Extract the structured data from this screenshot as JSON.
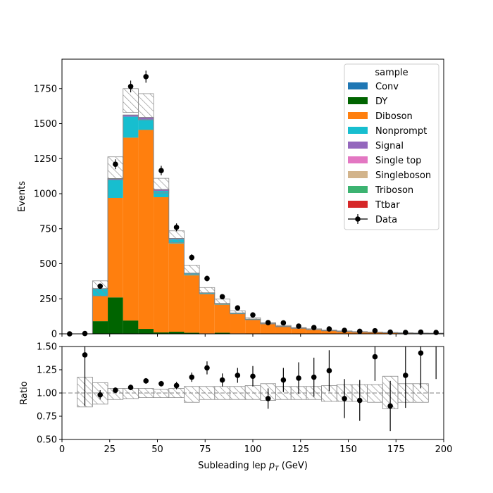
{
  "chart_data": {
    "type": "bar",
    "stacked": true,
    "xlabel": "Subleading lep p_T (GeV)",
    "xlim": [
      0,
      200
    ],
    "bin_edges": [
      0,
      8,
      16,
      24,
      32,
      40,
      48,
      56,
      64,
      72,
      80,
      88,
      96,
      104,
      112,
      120,
      128,
      136,
      144,
      152,
      160,
      168,
      176,
      184,
      192,
      200
    ],
    "main_panel": {
      "ylabel": "Events",
      "ylim": [
        0,
        1960
      ],
      "yticks": [
        0,
        250,
        500,
        750,
        1000,
        1250,
        1500,
        1750
      ],
      "legend": {
        "title": "sample",
        "placement": "top-right"
      },
      "series": [
        {
          "name": "Conv",
          "color": "#1f77b4",
          "values": [
            0,
            0,
            0,
            0,
            0,
            0,
            0,
            0,
            0,
            0,
            0,
            0,
            0,
            0,
            0,
            0,
            0,
            0,
            0,
            0,
            0,
            0,
            0,
            0,
            0
          ]
        },
        {
          "name": "DY",
          "color": "#006400",
          "values": [
            0,
            0,
            90,
            260,
            95,
            35,
            10,
            15,
            8,
            3,
            8,
            3,
            0,
            0,
            0,
            0,
            0,
            0,
            0,
            0,
            0,
            0,
            0,
            0,
            0
          ]
        },
        {
          "name": "Diboson",
          "color": "#ff7f0e",
          "values": [
            0,
            0,
            180,
            710,
            1305,
            1420,
            965,
            630,
            410,
            280,
            200,
            140,
            100,
            72,
            52,
            38,
            30,
            22,
            16,
            12,
            10,
            8,
            6,
            5,
            4
          ]
        },
        {
          "name": "Nonprompt",
          "color": "#17becf",
          "values": [
            0,
            0,
            50,
            130,
            150,
            75,
            45,
            30,
            12,
            8,
            8,
            5,
            4,
            3,
            2,
            2,
            1,
            1,
            1,
            1,
            1,
            0,
            0,
            0,
            0
          ]
        },
        {
          "name": "Signal",
          "color": "#9467bd",
          "values": [
            0,
            0,
            3,
            8,
            12,
            15,
            10,
            6,
            3,
            2,
            1,
            1,
            1,
            0,
            0,
            0,
            0,
            0,
            0,
            0,
            0,
            0,
            0,
            0,
            0
          ]
        },
        {
          "name": "Single top",
          "color": "#e377c2",
          "values": [
            0,
            0,
            0,
            0,
            0,
            0,
            0,
            0,
            0,
            0,
            0,
            0,
            0,
            0,
            0,
            0,
            0,
            0,
            0,
            0,
            0,
            0,
            0,
            0,
            0
          ]
        },
        {
          "name": "Singleboson",
          "color": "#d2b48c",
          "values": [
            0,
            0,
            0,
            0,
            0,
            0,
            0,
            0,
            0,
            0,
            0,
            0,
            0,
            0,
            0,
            0,
            0,
            0,
            0,
            0,
            0,
            0,
            0,
            0,
            0
          ]
        },
        {
          "name": "Triboson",
          "color": "#3cb371",
          "values": [
            0,
            0,
            0,
            0,
            0,
            0,
            0,
            0,
            0,
            0,
            0,
            0,
            0,
            0,
            0,
            0,
            0,
            0,
            0,
            0,
            0,
            0,
            0,
            0,
            0
          ]
        },
        {
          "name": "Ttbar",
          "color": "#d62728",
          "values": [
            0,
            0,
            0,
            0,
            0,
            0,
            0,
            0,
            0,
            0,
            0,
            0,
            0,
            0,
            0,
            0,
            0,
            0,
            0,
            0,
            0,
            0,
            0,
            0,
            0
          ]
        }
      ],
      "uncertainty": {
        "up": [
          0,
          0,
          378,
          1263,
          1750,
          1714,
          1110,
          735,
          490,
          330,
          248,
          165,
          115,
          80,
          60,
          45,
          36,
          27,
          21,
          16,
          13,
          10,
          8,
          6,
          5
        ],
        "down": [
          0,
          0,
          270,
          1100,
          1580,
          1527,
          1005,
          650,
          425,
          285,
          212,
          142,
          100,
          70,
          50,
          38,
          29,
          21,
          15,
          11,
          10,
          7,
          5,
          4,
          3
        ]
      },
      "data": {
        "name": "Data",
        "x": [
          4,
          12,
          20,
          28,
          36,
          44,
          52,
          60,
          68,
          76,
          84,
          92,
          100,
          108,
          116,
          124,
          132,
          140,
          148,
          156,
          164,
          172,
          180,
          188,
          196
        ],
        "y": [
          0,
          2,
          340,
          1210,
          1765,
          1835,
          1165,
          760,
          545,
          395,
          265,
          185,
          135,
          80,
          78,
          55,
          45,
          35,
          25,
          18,
          22,
          12,
          10,
          12,
          10
        ],
        "err": [
          0,
          2,
          18,
          35,
          42,
          43,
          34,
          28,
          23,
          20,
          16,
          14,
          12,
          9,
          9,
          7,
          7,
          6,
          5,
          4,
          5,
          4,
          3,
          4,
          3
        ]
      }
    },
    "ratio_panel": {
      "ylabel": "Ratio",
      "ylim": [
        0.5,
        1.5
      ],
      "yticks": [
        0.5,
        0.75,
        1.0,
        1.25,
        1.5
      ],
      "reference_line": 1.0,
      "band_low": [
        null,
        0.85,
        0.88,
        0.93,
        0.94,
        0.95,
        0.95,
        0.95,
        0.9,
        0.93,
        0.93,
        0.93,
        0.93,
        0.92,
        0.93,
        0.93,
        0.93,
        0.91,
        0.91,
        0.91,
        0.9,
        0.83,
        0.9,
        0.9,
        null
      ],
      "band_high": [
        null,
        1.17,
        1.11,
        1.05,
        1.05,
        1.05,
        1.04,
        1.05,
        1.07,
        1.07,
        1.07,
        1.07,
        1.08,
        1.1,
        1.07,
        1.07,
        1.07,
        1.08,
        1.09,
        1.09,
        1.09,
        1.18,
        1.1,
        1.1,
        null
      ],
      "ratio": {
        "x": [
          12,
          20,
          28,
          36,
          44,
          52,
          60,
          68,
          76,
          84,
          92,
          100,
          108,
          116,
          124,
          132,
          140,
          148,
          156,
          164,
          172,
          180,
          188,
          196
        ],
        "y": [
          1.41,
          0.98,
          1.03,
          1.06,
          1.13,
          1.1,
          1.08,
          1.17,
          1.27,
          1.14,
          1.19,
          1.18,
          0.94,
          1.14,
          1.16,
          1.17,
          1.24,
          0.94,
          0.92,
          1.39,
          0.86,
          1.19,
          1.43,
          1.55
        ],
        "err": [
          0.55,
          0.05,
          0.03,
          0.03,
          0.03,
          0.03,
          0.04,
          0.05,
          0.07,
          0.07,
          0.08,
          0.11,
          0.11,
          0.13,
          0.17,
          0.21,
          0.22,
          0.21,
          0.22,
          0.26,
          0.27,
          0.35,
          0.38,
          0.4
        ]
      }
    }
  }
}
